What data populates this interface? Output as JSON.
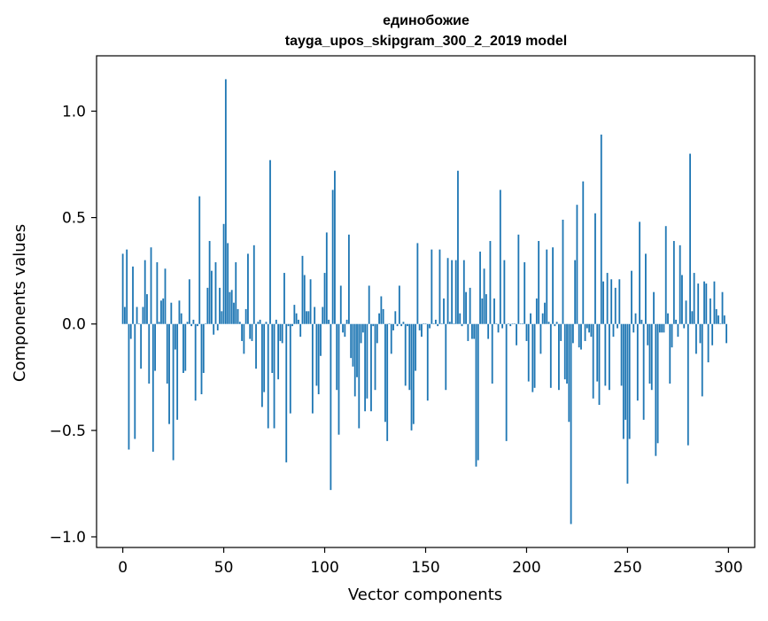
{
  "chart_data": {
    "type": "bar",
    "title": "единобожие",
    "subtitle": "tayga_upos_skipgram_300_2_2019 model",
    "xlabel": "Vector components",
    "ylabel": "Components values",
    "xlim": [
      -13,
      313
    ],
    "ylim": [
      -1.05,
      1.26
    ],
    "xticks": [
      0,
      50,
      100,
      150,
      200,
      250,
      300
    ],
    "xtick_labels": [
      "0",
      "50",
      "100",
      "150",
      "200",
      "250",
      "300"
    ],
    "yticks": [
      -1.0,
      -0.5,
      0.0,
      0.5,
      1.0
    ],
    "ytick_labels": [
      "−1.0",
      "−0.5",
      "0.0",
      "0.5",
      "1.0"
    ],
    "grid": false,
    "bar_color": "#1f77b4",
    "x": "0..299",
    "values": [
      0.33,
      0.08,
      0.35,
      -0.59,
      -0.07,
      0.27,
      -0.54,
      0.08,
      0.0,
      -0.21,
      0.08,
      0.3,
      0.14,
      -0.28,
      0.36,
      -0.6,
      -0.22,
      0.29,
      0.01,
      0.11,
      0.12,
      0.26,
      -0.28,
      -0.47,
      0.1,
      -0.64,
      -0.12,
      -0.45,
      0.11,
      0.05,
      -0.23,
      -0.22,
      0.01,
      0.21,
      -0.01,
      0.02,
      -0.36,
      -0.01,
      0.6,
      -0.33,
      -0.23,
      0.0,
      0.17,
      0.39,
      0.25,
      -0.05,
      0.29,
      -0.03,
      0.17,
      0.06,
      0.47,
      1.15,
      0.38,
      0.15,
      0.16,
      0.1,
      0.29,
      0.07,
      0.01,
      -0.08,
      -0.14,
      0.07,
      0.33,
      -0.07,
      -0.08,
      0.37,
      -0.21,
      0.01,
      0.02,
      -0.39,
      -0.32,
      0.01,
      -0.49,
      0.77,
      -0.23,
      -0.49,
      0.02,
      -0.26,
      -0.08,
      -0.09,
      0.24,
      -0.65,
      -0.01,
      -0.42,
      -0.01,
      0.09,
      0.05,
      0.02,
      -0.06,
      0.32,
      0.23,
      0.06,
      0.06,
      0.21,
      -0.42,
      0.08,
      -0.29,
      -0.33,
      -0.15,
      0.08,
      0.24,
      0.43,
      0.02,
      -0.78,
      0.63,
      0.72,
      -0.31,
      -0.52,
      0.18,
      -0.04,
      -0.06,
      0.02,
      0.42,
      -0.16,
      -0.2,
      -0.34,
      -0.25,
      -0.49,
      -0.09,
      -0.04,
      -0.41,
      -0.35,
      0.18,
      -0.41,
      -0.01,
      -0.31,
      -0.09,
      0.05,
      0.13,
      0.07,
      -0.46,
      -0.55,
      0.0,
      -0.14,
      -0.03,
      0.06,
      -0.01,
      0.18,
      -0.01,
      0.01,
      -0.29,
      -0.01,
      -0.31,
      -0.5,
      -0.47,
      -0.22,
      0.38,
      -0.03,
      -0.06,
      0.0,
      0.0,
      -0.36,
      -0.02,
      0.35,
      0.0,
      0.02,
      -0.01,
      0.35,
      0.0,
      0.12,
      -0.31,
      0.31,
      0.01,
      0.3,
      0.0,
      0.3,
      0.72,
      0.05,
      -0.01,
      0.3,
      0.15,
      -0.08,
      0.17,
      -0.07,
      -0.07,
      -0.67,
      -0.64,
      0.34,
      0.12,
      0.26,
      0.14,
      -0.07,
      0.39,
      -0.28,
      0.12,
      0.0,
      -0.04,
      0.63,
      -0.02,
      0.3,
      -0.55,
      0.0,
      -0.01,
      0.0,
      0.0,
      -0.1,
      0.42,
      0.0,
      0.0,
      0.29,
      -0.08,
      -0.27,
      0.05,
      -0.32,
      -0.3,
      0.12,
      0.39,
      -0.14,
      0.05,
      0.1,
      0.35,
      0.01,
      -0.3,
      0.36,
      -0.01,
      0.01,
      -0.31,
      -0.08,
      0.49,
      -0.26,
      -0.28,
      -0.46,
      -0.94,
      -0.09,
      0.3,
      0.56,
      -0.11,
      -0.12,
      0.67,
      -0.08,
      -0.02,
      -0.04,
      -0.06,
      -0.35,
      0.52,
      -0.27,
      -0.38,
      0.89,
      0.2,
      -0.29,
      0.24,
      -0.31,
      0.21,
      -0.06,
      0.17,
      -0.02,
      0.21,
      -0.29,
      -0.54,
      -0.45,
      -0.75,
      -0.54,
      0.25,
      -0.04,
      0.05,
      -0.36,
      0.48,
      0.02,
      -0.45,
      0.33,
      -0.1,
      -0.28,
      -0.31,
      0.15,
      -0.62,
      -0.56,
      -0.04,
      -0.04,
      -0.04,
      0.46,
      0.05,
      -0.28,
      -0.11,
      0.39,
      0.02,
      -0.06,
      0.37,
      0.23,
      -0.02,
      0.11,
      -0.57,
      0.8,
      0.06,
      0.24,
      -0.14,
      0.19,
      -0.09,
      -0.34,
      0.2,
      0.19,
      -0.18,
      0.12,
      -0.1,
      0.2,
      0.07,
      0.04,
      0.0,
      0.15,
      0.04,
      -0.09
    ]
  }
}
